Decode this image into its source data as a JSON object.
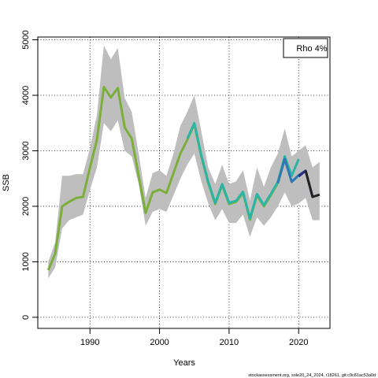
{
  "chart_data": {
    "type": "line",
    "xlabel": "Years",
    "ylabel": "SSB",
    "xlim": [
      1982.5,
      2024.5
    ],
    "ylim": [
      -200,
      5050
    ],
    "x_ticks": [
      1990,
      2000,
      2010,
      2020
    ],
    "y_ticks": [
      0,
      1000,
      2000,
      3000,
      4000,
      5000
    ],
    "grid": true,
    "legend": {
      "text": "Rho 4%",
      "placement": "top-right"
    },
    "confidence_band": {
      "color": "#bebebe",
      "x": [
        1984,
        1985,
        1986,
        1987,
        1988,
        1989,
        1990,
        1991,
        1992,
        1993,
        1994,
        1995,
        1996,
        1997,
        1998,
        1999,
        2000,
        2001,
        2002,
        2003,
        2004,
        2005,
        2006,
        2007,
        2008,
        2009,
        2010,
        2011,
        2012,
        2013,
        2014,
        2015,
        2016,
        2017,
        2018,
        2019,
        2020,
        2021,
        2022,
        2023
      ],
      "lower": [
        700,
        900,
        1600,
        1750,
        1800,
        1850,
        2300,
        2700,
        3500,
        3350,
        3550,
        3000,
        2900,
        2400,
        1650,
        1900,
        1950,
        1900,
        2200,
        2500,
        2750,
        2950,
        2450,
        2050,
        1750,
        1950,
        1700,
        1700,
        1850,
        1450,
        1800,
        1650,
        1800,
        2000,
        2250,
        2000,
        2050,
        2150,
        1750,
        1750
      ],
      "upper": [
        1000,
        1350,
        2550,
        2550,
        2580,
        2580,
        3050,
        3650,
        4900,
        4650,
        4850,
        3950,
        3700,
        2950,
        2150,
        2600,
        2650,
        2550,
        2950,
        3450,
        3700,
        4000,
        3350,
        2700,
        2400,
        2750,
        2400,
        2450,
        2650,
        2100,
        2700,
        2350,
        2700,
        2950,
        3400,
        2900,
        3000,
        3100,
        2700,
        2800
      ]
    },
    "series": [
      {
        "color": "#7cae3c",
        "x": [
          1984,
          1985,
          1986,
          1987,
          1988,
          1989,
          1990,
          1991,
          1992,
          1993,
          1994,
          1995,
          1996,
          1997,
          1998,
          1999,
          2000,
          2001,
          2002,
          2003,
          2004,
          2005,
          2006,
          2007,
          2008,
          2009,
          2010,
          2011,
          2012,
          2013,
          2014,
          2015,
          2016,
          2017,
          2018
        ],
        "values": [
          850,
          1150,
          2000,
          2080,
          2150,
          2170,
          2700,
          3200,
          4150,
          3960,
          4130,
          3420,
          3220,
          2550,
          1880,
          2250,
          2300,
          2240,
          2600,
          2950,
          3200,
          3480,
          2900,
          2420,
          2040,
          2380,
          2040,
          2080,
          2240,
          1760,
          2200,
          2000,
          2200,
          2420,
          2850
        ]
      },
      {
        "color": "#2bb5a4",
        "x": [
          2004,
          2005,
          2006,
          2007,
          2008,
          2009,
          2010,
          2011,
          2012,
          2013,
          2014,
          2015,
          2016,
          2017,
          2018,
          2019,
          2020
        ],
        "values": [
          3220,
          3500,
          2920,
          2440,
          2060,
          2400,
          2060,
          2100,
          2260,
          1780,
          2220,
          2020,
          2220,
          2440,
          2900,
          2550,
          2850
        ]
      },
      {
        "color": "#2f76b3",
        "x": [
          2017,
          2018,
          2019,
          2020,
          2021
        ],
        "values": [
          2420,
          2850,
          2440,
          2560,
          2640
        ]
      },
      {
        "color": "#2b2d7e",
        "x": [
          2020,
          2021,
          2022
        ],
        "values": [
          2540,
          2640,
          2170
        ]
      },
      {
        "color": "#222222",
        "x": [
          2021,
          2022,
          2023
        ],
        "values": [
          2640,
          2170,
          2210
        ]
      }
    ]
  },
  "footer": "stockassessment.org, sole20_24_2024, r18261, git:c9c81ac53a0d"
}
